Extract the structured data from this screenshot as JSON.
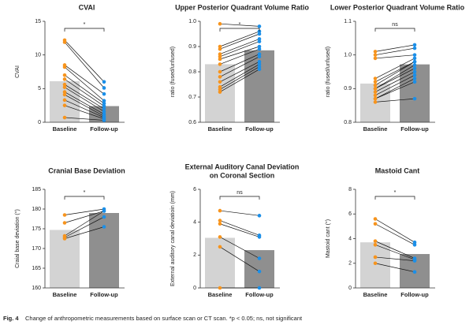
{
  "chart_data": [
    {
      "type": "paired-bar",
      "title": "CVAI",
      "y_label": "CVAI",
      "categories": [
        "Baseline",
        "Follow-up"
      ],
      "values": [
        6.1,
        2.4
      ],
      "bar_colors": [
        "#d3d3d3",
        "#8f8f8f"
      ],
      "point_colors": [
        "#f7941d",
        "#1b8fe8"
      ],
      "baseline": [
        12.2,
        11.9,
        8.5,
        8.2,
        7.0,
        6.4,
        5.6,
        5.2,
        4.5,
        4.1,
        3.3,
        2.5,
        0.7
      ],
      "follow_up": [
        6.0,
        5.1,
        4.2,
        3.2,
        2.8,
        2.4,
        2.0,
        1.6,
        1.2,
        0.9,
        0.7,
        0.5,
        0.3
      ],
      "ylim": [
        0,
        15
      ],
      "yticks": [
        0,
        5,
        10,
        15
      ],
      "significance": "*"
    },
    {
      "type": "paired-bar",
      "title": "Upper Posterior Quadrant Volume Ratio",
      "y_label": "ratio (fused/unfused)",
      "categories": [
        "Baseline",
        "Follow-up"
      ],
      "values": [
        0.83,
        0.885
      ],
      "bar_colors": [
        "#d3d3d3",
        "#8f8f8f"
      ],
      "point_colors": [
        "#f7941d",
        "#1b8fe8"
      ],
      "baseline": [
        0.99,
        0.9,
        0.89,
        0.87,
        0.86,
        0.85,
        0.83,
        0.8,
        0.78,
        0.76,
        0.74,
        0.73,
        0.72
      ],
      "follow_up": [
        0.98,
        0.96,
        0.95,
        0.93,
        0.92,
        0.9,
        0.89,
        0.87,
        0.86,
        0.84,
        0.83,
        0.82,
        0.81
      ],
      "ylim": [
        0.6,
        1.0
      ],
      "yticks": [
        0.6,
        0.7,
        0.8,
        0.9,
        {
          "value": 1.0,
          "label": "1.0"
        }
      ],
      "significance": "*"
    },
    {
      "type": "paired-bar",
      "title": "Lower Posterior Quadrant Volume Ratio",
      "y_label": "ratio (fused/unfused)",
      "categories": [
        "Baseline",
        "Follow-up"
      ],
      "values": [
        0.915,
        0.972
      ],
      "bar_colors": [
        "#d3d3d3",
        "#8f8f8f"
      ],
      "point_colors": [
        "#f7941d",
        "#1b8fe8"
      ],
      "baseline": [
        1.01,
        1.0,
        0.99,
        0.93,
        0.92,
        0.91,
        0.9,
        0.9,
        0.89,
        0.88,
        0.87,
        0.87,
        0.86
      ],
      "follow_up": [
        1.03,
        1.02,
        1.0,
        0.99,
        0.98,
        0.98,
        0.97,
        0.96,
        0.95,
        0.94,
        0.93,
        0.92,
        0.87
      ],
      "ylim": [
        0.8,
        1.1
      ],
      "yticks": [
        0.8,
        0.9,
        {
          "value": 1.0,
          "label": "1.0"
        },
        1.1
      ],
      "significance": "ns"
    },
    {
      "type": "paired-bar",
      "title": "Cranial Base Deviation",
      "y_label": "Craial base deviation (°)",
      "categories": [
        "Baseline",
        "Follow-up"
      ],
      "values": [
        174.7,
        179.0
      ],
      "bar_colors": [
        "#d3d3d3",
        "#8f8f8f"
      ],
      "point_colors": [
        "#f7941d",
        "#1b8fe8"
      ],
      "baseline": [
        178.5,
        176.5,
        173.2,
        172.8,
        172.5
      ],
      "follow_up": [
        180.0,
        179.5,
        179.5,
        178.0,
        175.5
      ],
      "ylim": [
        160,
        185
      ],
      "yticks": [
        160,
        165,
        170,
        175,
        180,
        185
      ],
      "significance": "*"
    },
    {
      "type": "paired-bar",
      "title": [
        "External Auditory Canal Deviation",
        "on Coronal Section"
      ],
      "y_label": "External auditory canal deviatioin (mm)",
      "categories": [
        "Baseline",
        "Follow-up"
      ],
      "values": [
        3.05,
        2.3
      ],
      "bar_colors": [
        "#d3d3d3",
        "#8f8f8f"
      ],
      "point_colors": [
        "#f7941d",
        "#1b8fe8"
      ],
      "baseline": [
        4.7,
        4.1,
        3.9,
        3.1,
        2.5,
        0.0
      ],
      "follow_up": [
        4.4,
        3.2,
        3.1,
        1.8,
        1.0,
        0.0
      ],
      "ylim": [
        0,
        6
      ],
      "yticks": [
        0,
        2,
        4,
        6
      ],
      "significance": "ns"
    },
    {
      "type": "paired-bar",
      "title": "Mastoid Cant",
      "y_label": "Mastoid cant (°)",
      "categories": [
        "Baseline",
        "Follow-up"
      ],
      "values": [
        3.7,
        2.75
      ],
      "bar_colors": [
        "#d3d3d3",
        "#8f8f8f"
      ],
      "point_colors": [
        "#f7941d",
        "#1b8fe8"
      ],
      "baseline": [
        5.6,
        5.2,
        3.8,
        3.5,
        2.5,
        2.0
      ],
      "follow_up": [
        3.7,
        3.5,
        2.4,
        2.3,
        2.2,
        1.3
      ],
      "ylim": [
        0,
        8
      ],
      "yticks": [
        0,
        2,
        4,
        6,
        8
      ],
      "significance": "*"
    }
  ],
  "caption": {
    "label": "Fig. 4",
    "text": "Change of anthropometric measurements based on surface scan or CT scan. *p < 0.05; ns, not significant"
  }
}
